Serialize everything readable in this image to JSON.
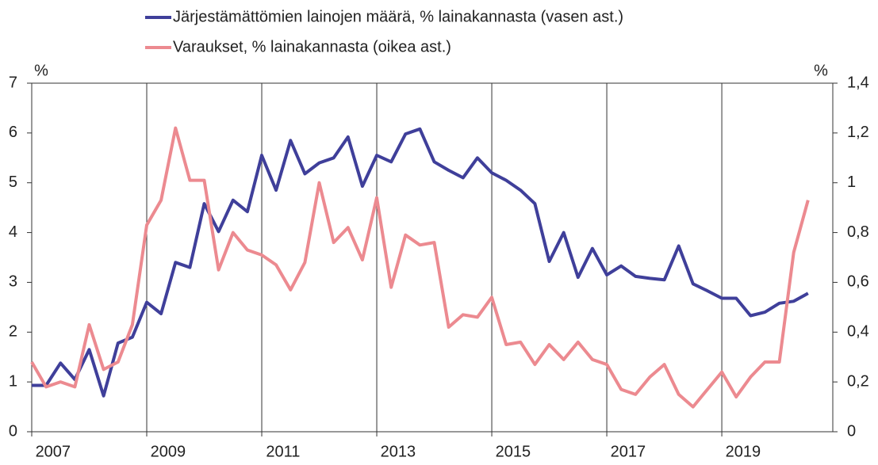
{
  "chart_data": {
    "type": "line",
    "series": [
      {
        "name": "Järjestämättömien lainojen määrä, % lainakannasta (vasen ast.)",
        "color": "#3f3f9a",
        "axis": "y",
        "values": [
          0.93,
          0.93,
          1.38,
          1.05,
          1.65,
          0.72,
          1.78,
          1.9,
          2.6,
          2.37,
          3.4,
          3.3,
          4.58,
          4.02,
          4.65,
          4.42,
          5.55,
          4.85,
          5.85,
          5.18,
          5.4,
          5.5,
          5.92,
          4.93,
          5.55,
          5.42,
          5.98,
          6.08,
          5.42,
          5.25,
          5.1,
          5.5,
          5.2,
          5.05,
          4.85,
          4.58,
          3.42,
          4.0,
          3.1,
          3.68,
          3.15,
          3.33,
          3.12,
          3.08,
          3.05,
          3.73,
          2.97,
          2.83,
          2.68,
          2.68,
          2.33,
          2.4,
          2.58,
          2.62,
          2.78
        ]
      },
      {
        "name": "Varaukset, % lainakannasta (oikea ast.)",
        "color": "#ec8a90",
        "axis": "y2",
        "values": [
          0.28,
          0.18,
          0.2,
          0.18,
          0.43,
          0.25,
          0.28,
          0.43,
          0.83,
          0.93,
          1.22,
          1.01,
          1.01,
          0.65,
          0.8,
          0.73,
          0.71,
          0.67,
          0.57,
          0.68,
          1.0,
          0.76,
          0.82,
          0.69,
          0.94,
          0.58,
          0.79,
          0.75,
          0.76,
          0.42,
          0.47,
          0.46,
          0.54,
          0.35,
          0.36,
          0.27,
          0.35,
          0.29,
          0.36,
          0.29,
          0.27,
          0.17,
          0.15,
          0.22,
          0.27,
          0.15,
          0.1,
          0.17,
          0.24,
          0.14,
          0.22,
          0.28,
          0.28,
          0.72,
          0.93
        ]
      }
    ],
    "x": [
      2007,
      2007.25,
      2007.5,
      2007.75,
      2008,
      2008.25,
      2008.5,
      2008.75,
      2009,
      2009.25,
      2009.5,
      2009.75,
      2010,
      2010.25,
      2010.5,
      2010.75,
      2011,
      2011.25,
      2011.5,
      2011.75,
      2012,
      2012.25,
      2012.5,
      2012.75,
      2013,
      2013.25,
      2013.5,
      2013.75,
      2014,
      2014.25,
      2014.5,
      2014.75,
      2015,
      2015.25,
      2015.5,
      2015.75,
      2016,
      2016.25,
      2016.5,
      2016.75,
      2017,
      2017.25,
      2017.5,
      2017.75,
      2018,
      2018.25,
      2018.5,
      2018.75,
      2019,
      2019.25,
      2019.5,
      2019.75,
      2020,
      2020.25,
      2020.5
    ],
    "xlim": [
      2007,
      2020.93
    ],
    "xticks": [
      2007,
      2009,
      2011,
      2013,
      2015,
      2017,
      2019
    ],
    "ylim": [
      0,
      7
    ],
    "yticks": [
      0,
      1,
      2,
      3,
      4,
      5,
      6,
      7
    ],
    "y_unit": "%",
    "y2lim": [
      0,
      1.4
    ],
    "y2ticks": [
      0,
      {
        "value": 0.2,
        "label": "0,2"
      },
      {
        "value": 0.4,
        "label": "0,4"
      },
      {
        "value": 0.6,
        "label": "0,6"
      },
      {
        "value": 0.8,
        "label": "0,8"
      },
      1,
      {
        "value": 1.2,
        "label": "1,2"
      },
      {
        "value": 1.4,
        "label": "1,4"
      }
    ],
    "y2_unit": "%",
    "grid": "x"
  }
}
